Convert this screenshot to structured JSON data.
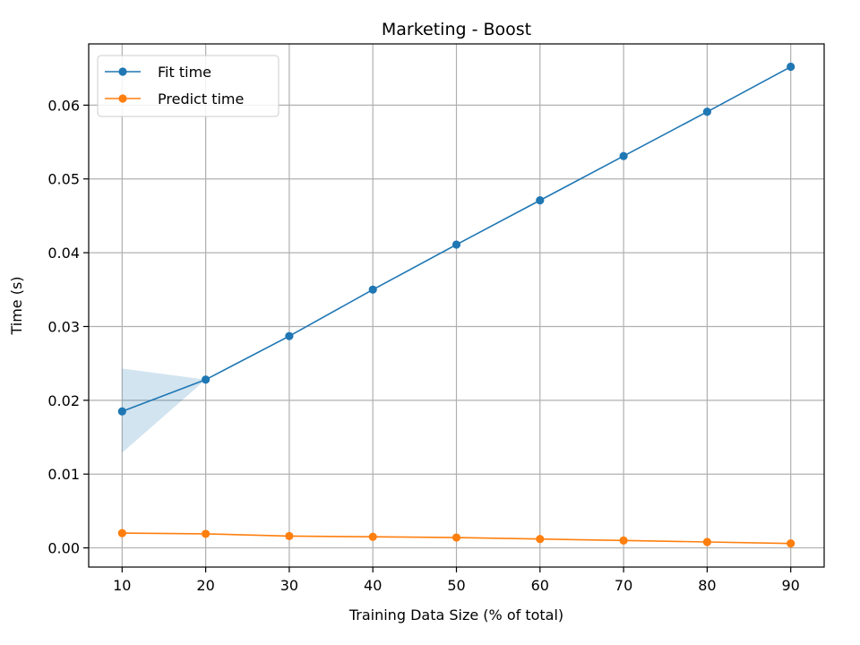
{
  "chart_data": {
    "type": "line",
    "title": "Marketing - Boost",
    "xlabel": "Training Data Size (% of total)",
    "ylabel": "Time (s)",
    "x": [
      10,
      20,
      30,
      40,
      50,
      60,
      70,
      80,
      90
    ],
    "xticks": [
      "10",
      "20",
      "30",
      "40",
      "50",
      "60",
      "70",
      "80",
      "90"
    ],
    "yticks": [
      "0.00",
      "0.01",
      "0.02",
      "0.03",
      "0.04",
      "0.05",
      "0.06"
    ],
    "xlim": [
      6,
      94
    ],
    "ylim": [
      -0.0026,
      0.0683
    ],
    "grid": true,
    "legend_position": "top-left",
    "series": [
      {
        "name": "Fit time",
        "color": "#1f77b4",
        "values": [
          0.0185,
          0.0228,
          0.0287,
          0.035,
          0.0411,
          0.0471,
          0.0531,
          0.0591,
          0.0652
        ],
        "band_lower": [
          0.0129,
          0.0228,
          0.0287,
          0.035,
          0.0411,
          0.0471,
          0.0531,
          0.0591,
          0.0652
        ],
        "band_upper": [
          0.0243,
          0.0228,
          0.0287,
          0.035,
          0.0411,
          0.0471,
          0.0531,
          0.0591,
          0.0652
        ]
      },
      {
        "name": "Predict time",
        "color": "#ff7f0e",
        "values": [
          0.002,
          0.0019,
          0.0016,
          0.0015,
          0.0014,
          0.0012,
          0.001,
          0.0008,
          0.0006
        ]
      }
    ]
  }
}
